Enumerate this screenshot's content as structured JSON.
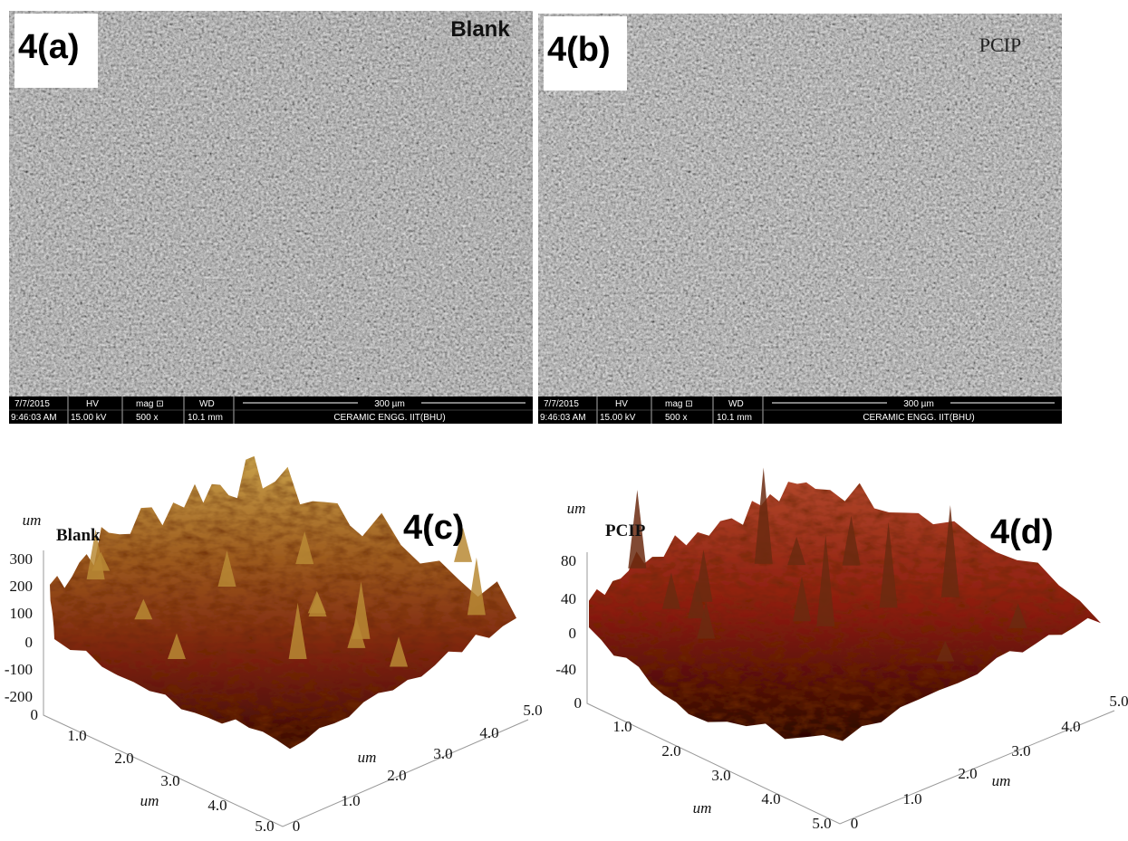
{
  "sem": [
    {
      "label": "4(a)",
      "tag": "Blank",
      "info": {
        "date": "7/7/2015",
        "hv_label": "HV",
        "mag_label": "mag ⊡",
        "wd_label": "WD",
        "scale": "300 µm",
        "time": "9:46:03 AM",
        "hv": "15.00 kV",
        "mag": "500 x",
        "wd": "10.1 mm",
        "lab": "CERAMIC ENGG. IIT(BHU)"
      }
    },
    {
      "label": "4(b)",
      "tag": "PCIP",
      "info": {
        "date": "7/7/2015",
        "hv_label": "HV",
        "mag_label": "mag ⊡",
        "wd_label": "WD",
        "scale": "300 µm",
        "time": "9:46:03 AM",
        "hv": "15.00 kV",
        "mag": "500 x",
        "wd": "10.1 mm",
        "lab": "CERAMIC ENGG. IIT(BHU)"
      }
    }
  ],
  "afm": [
    {
      "label": "4(c)",
      "tag": "Blank",
      "z_unit": "um",
      "z_ticks": [
        "300",
        "200",
        "100",
        "0",
        "-100",
        "-200"
      ],
      "origin": "0",
      "x_ticks": [
        "1.0",
        "2.0",
        "3.0",
        "4.0",
        "5.0"
      ],
      "x_unit": "um",
      "y_origin": "0",
      "y_ticks": [
        "1.0",
        "2.0",
        "3.0",
        "4.0",
        "5.0"
      ],
      "y_unit": "um"
    },
    {
      "label": "4(d)",
      "tag": "PCIP",
      "z_unit": "um",
      "z_ticks": [
        "80",
        "40",
        "0",
        "-40"
      ],
      "origin": "0",
      "x_ticks": [
        "1.0",
        "2.0",
        "3.0",
        "4.0",
        "5.0"
      ],
      "x_unit": "um",
      "y_origin": "0",
      "y_ticks": [
        "1.0",
        "2.0",
        "3.0",
        "4.0",
        "5.0"
      ],
      "y_unit": "um"
    }
  ]
}
